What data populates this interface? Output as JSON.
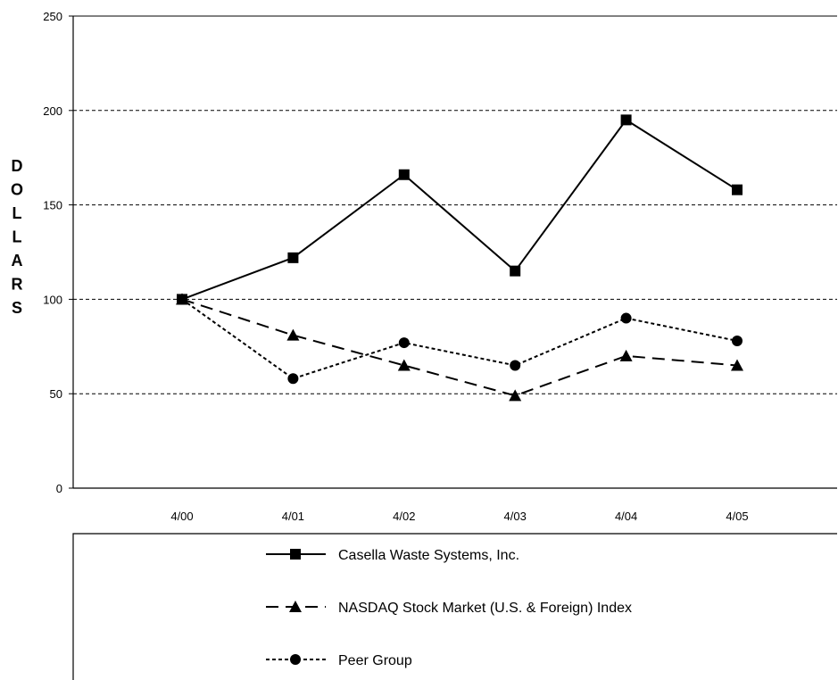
{
  "chart_data": {
    "type": "line",
    "ylabel": "DOLLARS",
    "categories": [
      "4/00",
      "4/01",
      "4/02",
      "4/03",
      "4/04",
      "4/05"
    ],
    "yticks": [
      0,
      50,
      100,
      150,
      200,
      250
    ],
    "ylim": [
      0,
      250
    ],
    "grid": true,
    "legend_position": "bottom",
    "series": [
      {
        "name": "Casella Waste Systems, Inc.",
        "marker": "square",
        "dash": "solid",
        "values": [
          100,
          122,
          166,
          115,
          195,
          158
        ]
      },
      {
        "name": "NASDAQ Stock Market (U.S. & Foreign) Index",
        "marker": "triangle",
        "dash": "dashed",
        "values": [
          100,
          81,
          65,
          49,
          70,
          65
        ]
      },
      {
        "name": "Peer Group",
        "marker": "circle",
        "dash": "dotted",
        "values": [
          100,
          58,
          77,
          65,
          90,
          78
        ]
      }
    ]
  }
}
